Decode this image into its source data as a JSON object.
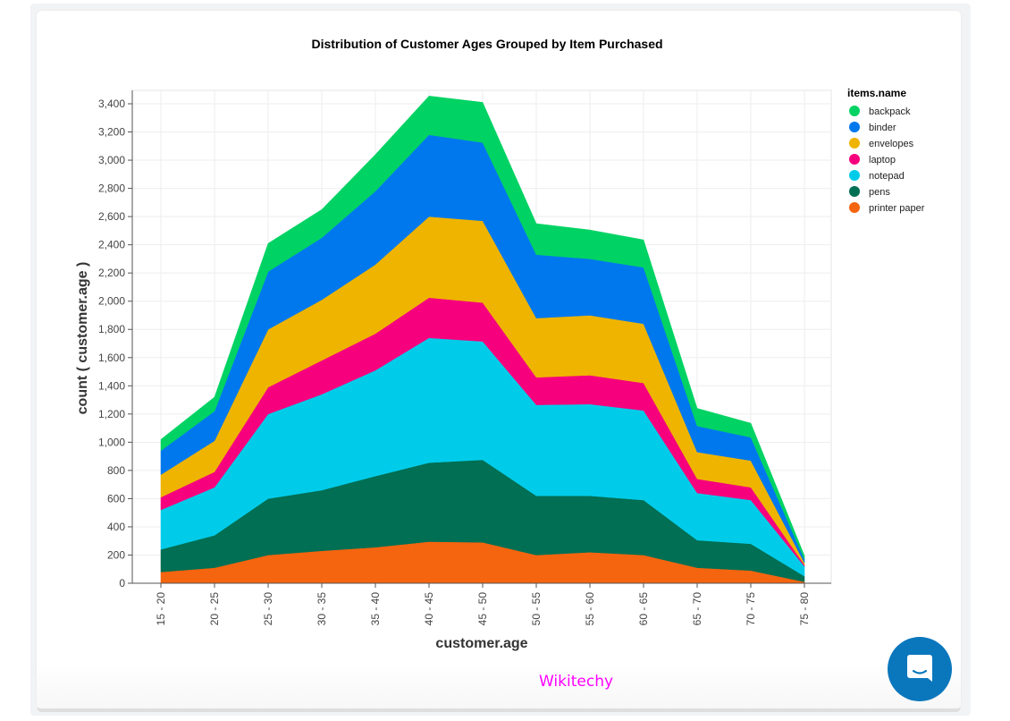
{
  "chart_data": {
    "type": "area",
    "stacked": true,
    "title": "Distribution of Customer Ages Grouped by Item Purchased",
    "xlabel": "customer.age",
    "ylabel": "count ( customer.age )",
    "ylim": [
      0,
      3500
    ],
    "yticks": [
      0,
      200,
      400,
      600,
      800,
      1000,
      1200,
      1400,
      1600,
      1800,
      2000,
      2200,
      2400,
      2600,
      2800,
      3000,
      3200,
      3400
    ],
    "ytick_labels": [
      "0",
      "200",
      "400",
      "600",
      "800",
      "1,000",
      "1,200",
      "1,400",
      "1,600",
      "1,800",
      "2,000",
      "2,200",
      "2,400",
      "2,600",
      "2,800",
      "3,000",
      "3,200",
      "3,400"
    ],
    "grid": true,
    "legend_title": "items.name",
    "legend_position": "top-right",
    "categories": [
      "15 - 20",
      "20 - 25",
      "25 - 30",
      "30 - 35",
      "35 - 40",
      "40 - 45",
      "45 - 50",
      "50 - 55",
      "55 - 60",
      "60 - 65",
      "65 - 70",
      "70 - 75",
      "75 - 80"
    ],
    "series": [
      {
        "name": "printer paper",
        "color": "#f5640f",
        "values": [
          80,
          110,
          200,
          230,
          255,
          295,
          290,
          200,
          220,
          200,
          110,
          90,
          10
        ]
      },
      {
        "name": "pens",
        "color": "#006f53",
        "values": [
          160,
          230,
          400,
          430,
          505,
          560,
          585,
          420,
          400,
          390,
          195,
          190,
          40
        ]
      },
      {
        "name": "notepad",
        "color": "#00ccea",
        "values": [
          280,
          340,
          600,
          680,
          750,
          885,
          840,
          645,
          650,
          635,
          335,
          310,
          70
        ]
      },
      {
        "name": "laptop",
        "color": "#f7007d",
        "values": [
          90,
          110,
          190,
          240,
          260,
          285,
          275,
          195,
          205,
          195,
          100,
          90,
          10
        ]
      },
      {
        "name": "envelopes",
        "color": "#efb400",
        "values": [
          160,
          220,
          410,
          430,
          490,
          575,
          580,
          420,
          425,
          420,
          190,
          190,
          15
        ]
      },
      {
        "name": "binder",
        "color": "#0078ed",
        "values": [
          170,
          210,
          410,
          440,
          520,
          580,
          555,
          450,
          400,
          400,
          185,
          165,
          25
        ]
      },
      {
        "name": "backpack",
        "color": "#00d363",
        "values": [
          80,
          100,
          200,
          200,
          260,
          275,
          285,
          220,
          205,
          195,
          125,
          100,
          25
        ]
      }
    ],
    "legend_order": [
      "backpack",
      "binder",
      "envelopes",
      "laptop",
      "notepad",
      "pens",
      "printer paper"
    ]
  },
  "watermark": "Wikitechy",
  "chat_button": {
    "icon": "chat-bubble-icon"
  }
}
